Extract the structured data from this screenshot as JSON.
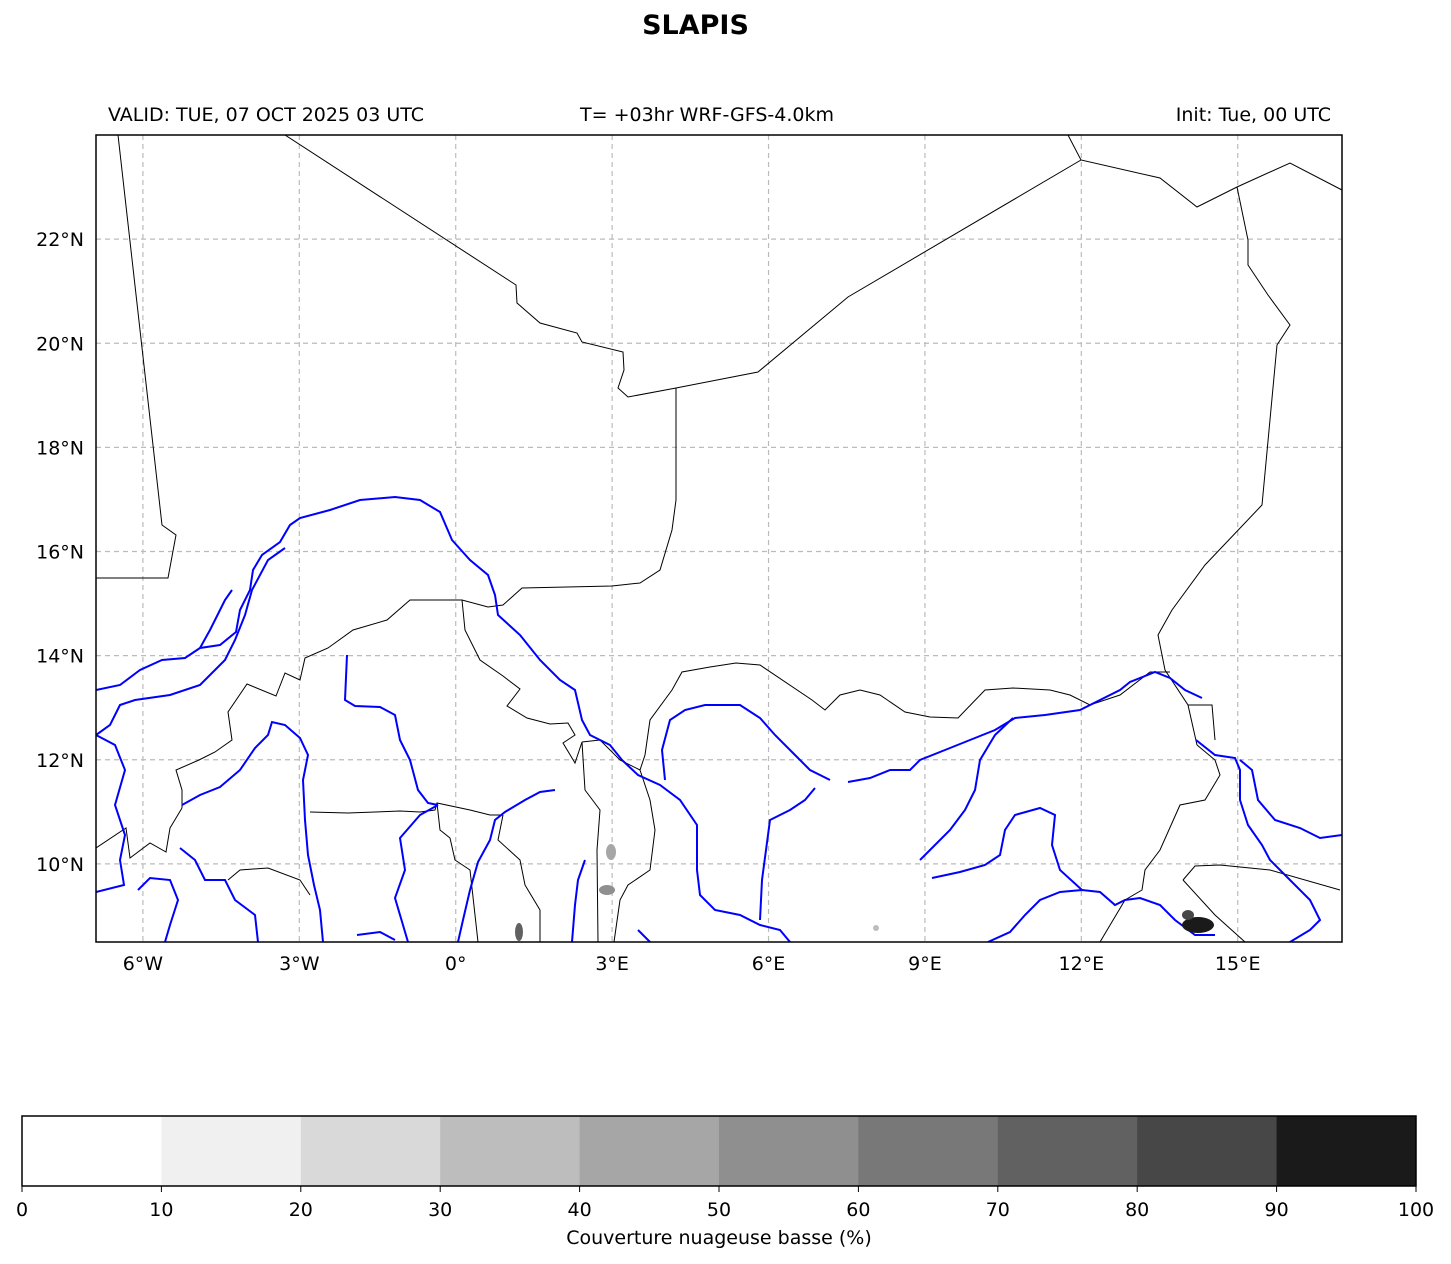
{
  "header": {
    "title": "SLAPIS",
    "valid": "VALID: TUE, 07 OCT 2025 03 UTC",
    "model": "T= +03hr WRF-GFS-4.0km",
    "init": "Init: Tue, 00 UTC"
  },
  "map": {
    "lon_range": [
      -6.9,
      17
    ],
    "lat_range": [
      8.5,
      24
    ],
    "lon_ticks": [
      {
        "lon": -6,
        "label": "6°W"
      },
      {
        "lon": -3,
        "label": "3°W"
      },
      {
        "lon": 0,
        "label": "0°"
      },
      {
        "lon": 3,
        "label": "3°E"
      },
      {
        "lon": 6,
        "label": "6°E"
      },
      {
        "lon": 9,
        "label": "9°E"
      },
      {
        "lon": 12,
        "label": "12°E"
      },
      {
        "lon": 15,
        "label": "15°E"
      }
    ],
    "lat_ticks": [
      {
        "lat": 10,
        "label": "10°N"
      },
      {
        "lat": 12,
        "label": "12°N"
      },
      {
        "lat": 14,
        "label": "14°N"
      },
      {
        "lat": 16,
        "label": "16°N"
      },
      {
        "lat": 18,
        "label": "18°N"
      },
      {
        "lat": 20,
        "label": "20°N"
      },
      {
        "lat": 22,
        "label": "22°N"
      }
    ],
    "grid": true,
    "border_color": "#000000",
    "river_color": "#0000ff"
  },
  "colorbar": {
    "label": "Couverture nuageuse basse (%)",
    "tick_labels": [
      "0",
      "10",
      "20",
      "30",
      "40",
      "50",
      "60",
      "70",
      "80",
      "90",
      "100"
    ],
    "colors": [
      "#ffffff",
      "#f0f0f0",
      "#d9d9d9",
      "#bdbdbd",
      "#a6a6a6",
      "#8f8f8f",
      "#787878",
      "#616161",
      "#474747",
      "#1a1a1a"
    ]
  }
}
